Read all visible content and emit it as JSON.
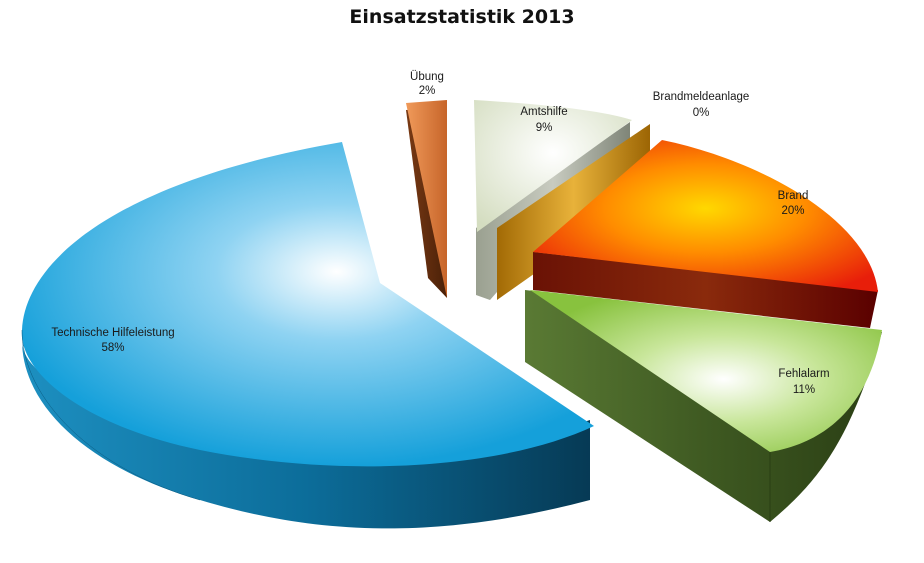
{
  "chart_data": {
    "type": "pie",
    "title": "Einsatzstatistik 2013",
    "style": "3d-exploded",
    "slices": [
      {
        "name": "Technische Hilfeleistung",
        "value": 58,
        "label": "58%",
        "color": "#1aa3dc"
      },
      {
        "name": "Übung",
        "value": 2,
        "label": "2%",
        "color": "#d9783a"
      },
      {
        "name": "Amtshilfe",
        "value": 9,
        "label": "9%",
        "color": "#dfe7cf"
      },
      {
        "name": "Brandmeldeanlage",
        "value": 0,
        "label": "0%",
        "color": "#c98a0c"
      },
      {
        "name": "Brand",
        "value": 20,
        "label": "20%",
        "color": "#f05a10"
      },
      {
        "name": "Fehlalarm",
        "value": 11,
        "label": "11%",
        "color": "#8cc448"
      }
    ]
  }
}
